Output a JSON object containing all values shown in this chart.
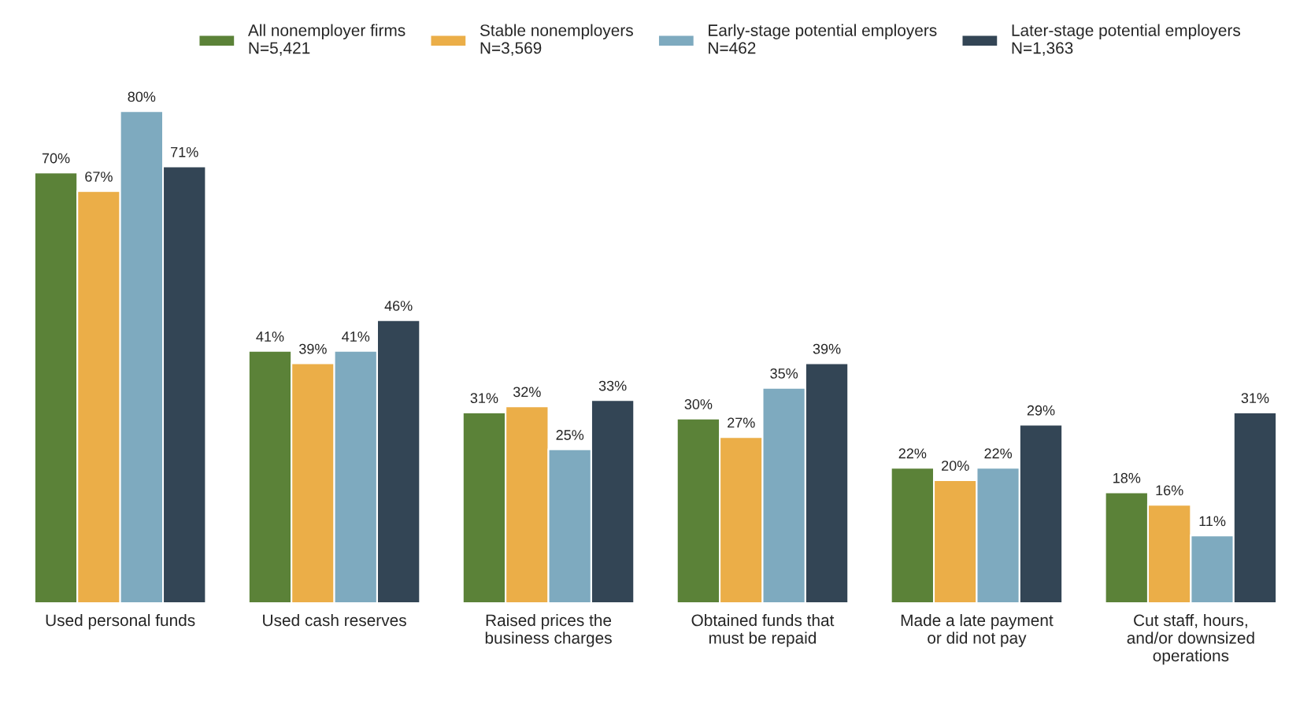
{
  "chart_data": {
    "type": "bar",
    "categories": [
      "Used personal funds",
      "Used cash reserves",
      "Raised prices the business charges",
      "Obtained funds that must be repaid",
      "Made a late payment or did not pay",
      "Cut staff, hours, and/or downsized operations"
    ],
    "series": [
      {
        "name": "All nonemployer firms\nN=5,421",
        "color": "#5b8238",
        "values": [
          70,
          41,
          31,
          30,
          22,
          18
        ],
        "value_labels": [
          "70%",
          "41%",
          "31%",
          "30%",
          "22%",
          "18%"
        ]
      },
      {
        "name": "Stable nonemployers\nN=3,569",
        "color": "#ebae48",
        "values": [
          67,
          39,
          32,
          27,
          20,
          16
        ],
        "value_labels": [
          "67%",
          "39%",
          "32%",
          "27%",
          "20%",
          "16%"
        ]
      },
      {
        "name": "Early-stage potential employers\nN=462",
        "color": "#7eaabf",
        "values": [
          80,
          41,
          25,
          35,
          22,
          11
        ],
        "value_labels": [
          "80%",
          "41%",
          "25%",
          "35%",
          "22%",
          "11%"
        ]
      },
      {
        "name": "Later-stage potential employers\nN=1,363",
        "color": "#334555",
        "values": [
          71,
          46,
          33,
          39,
          29,
          31
        ],
        "value_labels": [
          "71%",
          "46%",
          "33%",
          "39%",
          "29%",
          "31%"
        ]
      }
    ],
    "legend": "top",
    "grid": false,
    "tick_labels": "x"
  }
}
